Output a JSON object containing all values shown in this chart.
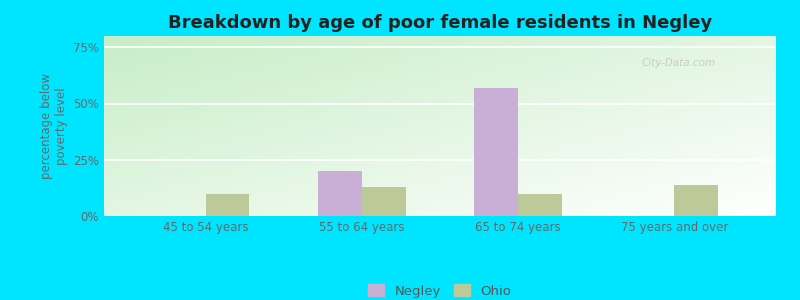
{
  "title": "Breakdown by age of poor female residents in Negley",
  "ylabel": "percentage below\npoverty level",
  "categories": [
    "45 to 54 years",
    "55 to 64 years",
    "65 to 74 years",
    "75 years and over"
  ],
  "negley_values": [
    0,
    20,
    57,
    0
  ],
  "ohio_values": [
    10,
    13,
    10,
    14
  ],
  "negley_color": "#c9aed6",
  "ohio_color": "#bec99a",
  "yticks": [
    0,
    25,
    50,
    75
  ],
  "ytick_labels": [
    "0%",
    "25%",
    "50%",
    "75%"
  ],
  "ylim": [
    0,
    80
  ],
  "outer_bg": "#00e5ff",
  "legend_labels": [
    "Negley",
    "Ohio"
  ],
  "title_fontsize": 13,
  "label_fontsize": 8.5,
  "tick_fontsize": 8.5,
  "watermark": "City-Data.com"
}
